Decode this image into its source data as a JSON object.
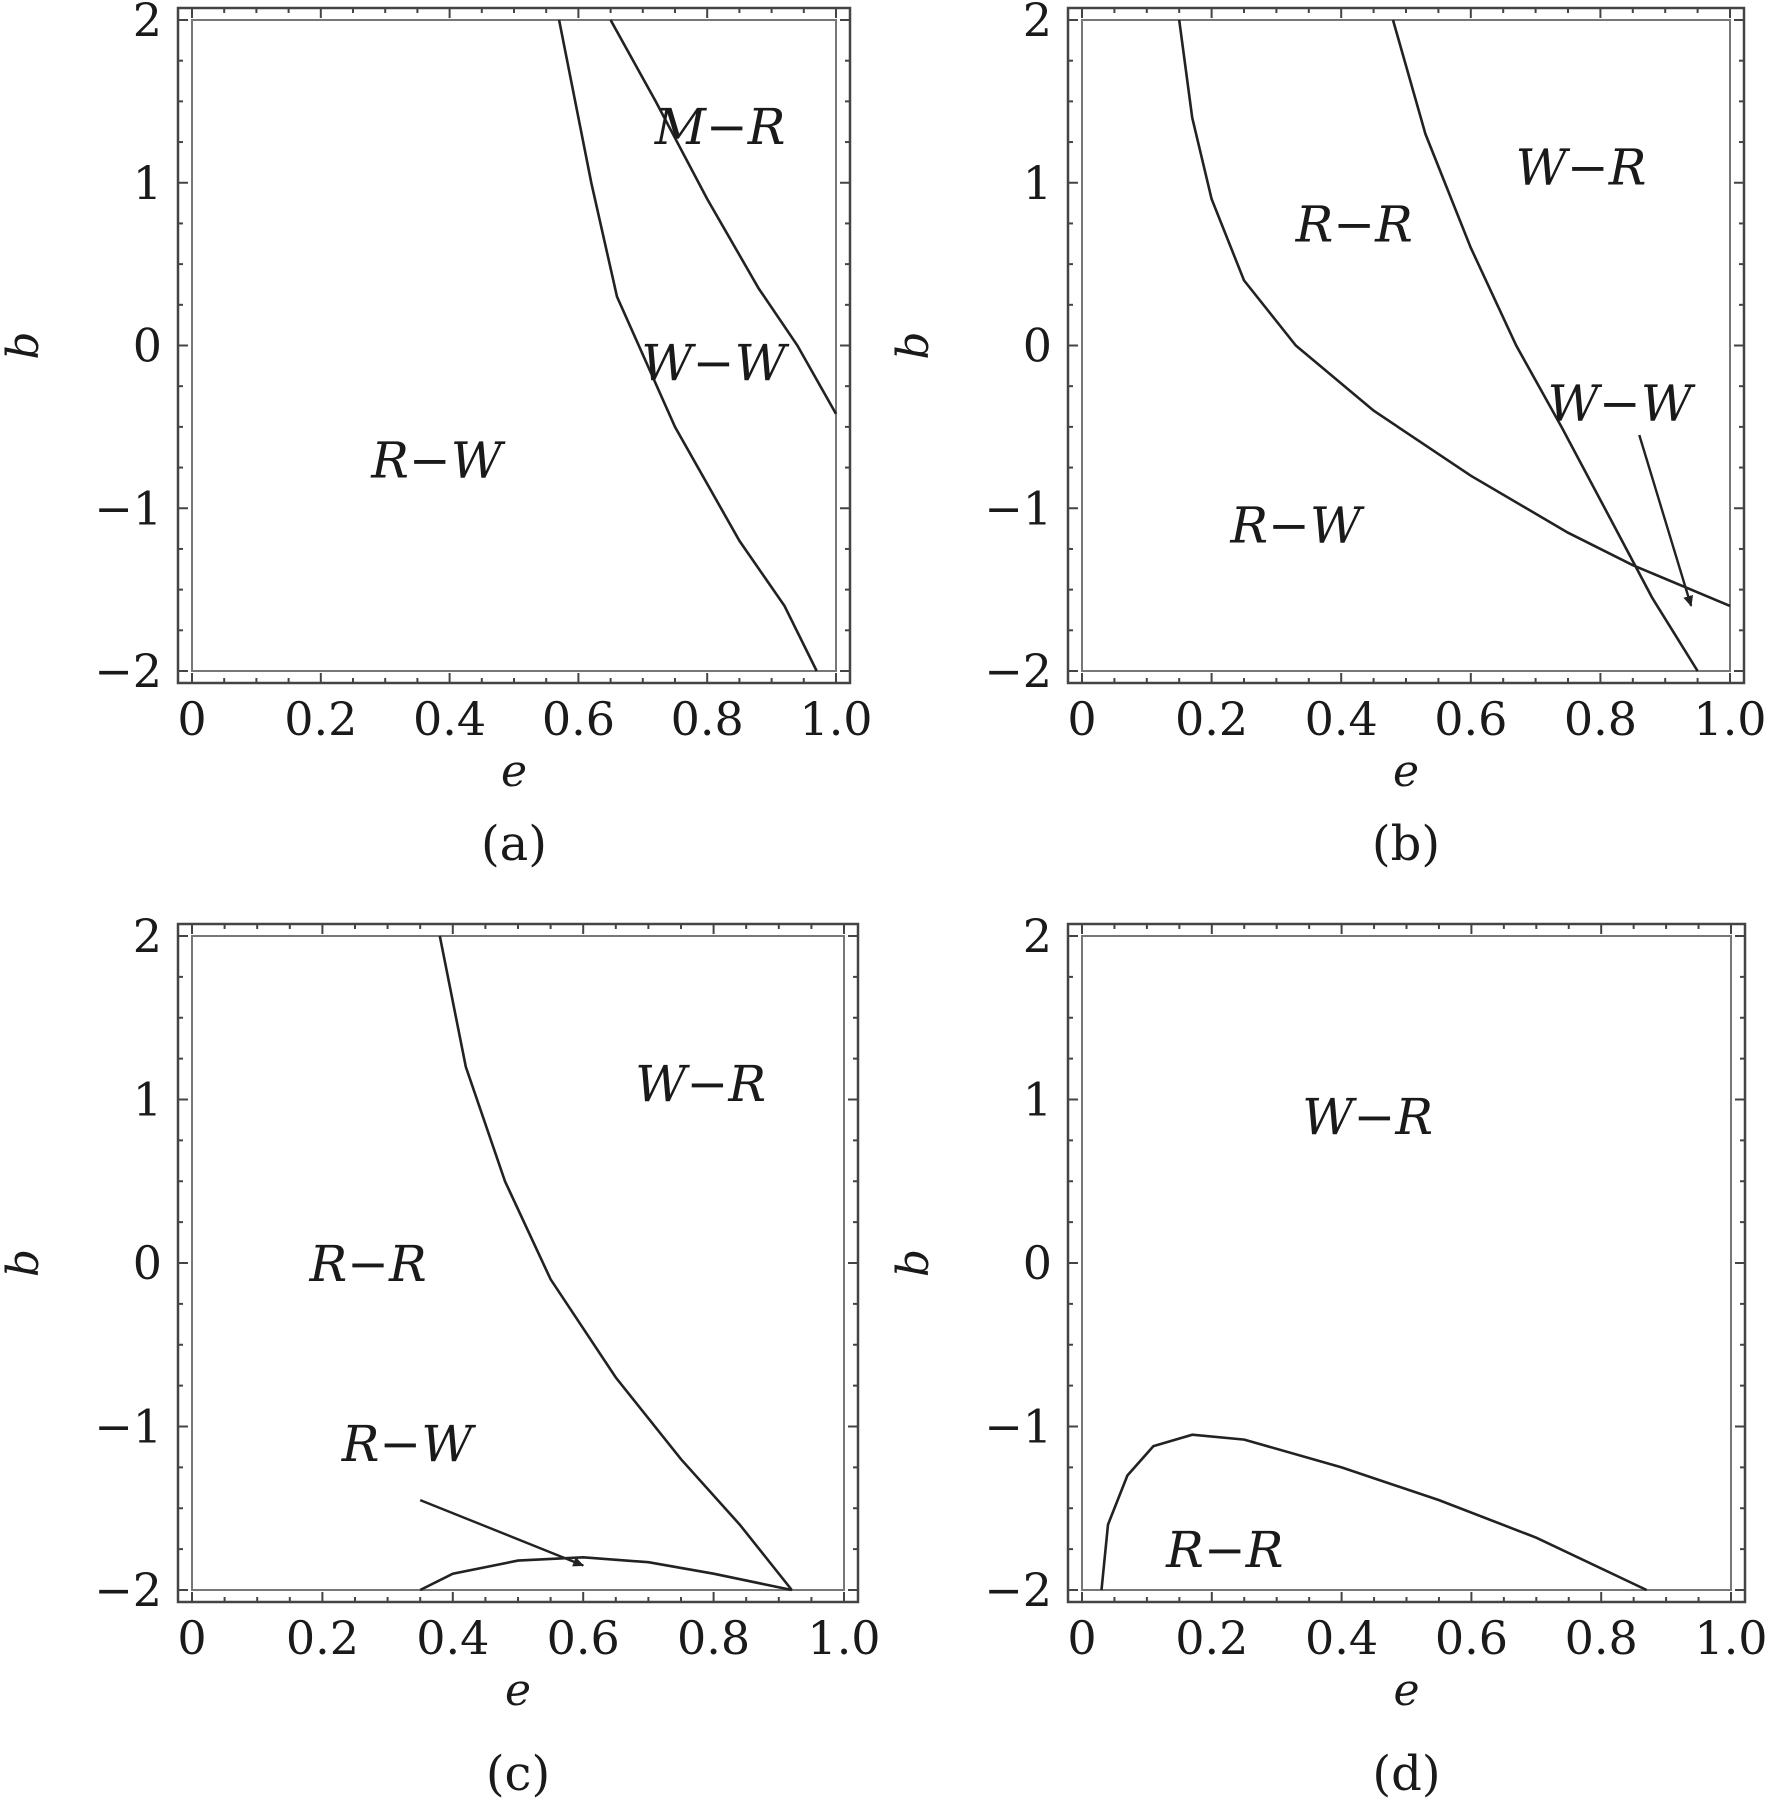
{
  "chart_data": [
    {
      "type": "line",
      "panel": "(a)",
      "xlabel": "e",
      "ylabel": "b",
      "xlim": [
        0,
        1.0
      ],
      "ylim": [
        -2,
        2
      ],
      "x_ticks": [
        "0",
        "0.2",
        "0.4",
        "0.6",
        "0.8",
        "1.0"
      ],
      "y_ticks": [
        "2",
        "1",
        "0",
        "−1",
        "−2"
      ],
      "curves": [
        {
          "points": [
            [
              0.57,
              2
            ],
            [
              0.62,
              1
            ],
            [
              0.66,
              0.3
            ],
            [
              0.75,
              -0.5
            ],
            [
              0.85,
              -1.2
            ],
            [
              0.92,
              -1.6
            ],
            [
              0.97,
              -2
            ]
          ]
        },
        {
          "points": [
            [
              0.65,
              2
            ],
            [
              0.72,
              1.5
            ],
            [
              0.8,
              0.9
            ],
            [
              0.88,
              0.35
            ],
            [
              0.94,
              0.0
            ],
            [
              1.0,
              -0.42
            ]
          ]
        }
      ],
      "regions": [
        {
          "label": "M−R",
          "at": [
            0.82,
            1.35
          ]
        },
        {
          "label": "W−W",
          "at": [
            0.81,
            -0.1
          ]
        },
        {
          "label": "R−W",
          "at": [
            0.38,
            -0.7
          ]
        }
      ],
      "arrows": []
    },
    {
      "type": "line",
      "panel": "(b)",
      "xlabel": "e",
      "ylabel": "b",
      "xlim": [
        0,
        1.0
      ],
      "ylim": [
        -2,
        2
      ],
      "x_ticks": [
        "0",
        "0.2",
        "0.4",
        "0.6",
        "0.8",
        "1.0"
      ],
      "y_ticks": [
        "2",
        "1",
        "0",
        "−1",
        "−2"
      ],
      "curves": [
        {
          "points": [
            [
              0.15,
              2
            ],
            [
              0.17,
              1.4
            ],
            [
              0.2,
              0.9
            ],
            [
              0.25,
              0.4
            ],
            [
              0.33,
              0.0
            ],
            [
              0.45,
              -0.4
            ],
            [
              0.6,
              -0.8
            ],
            [
              0.75,
              -1.15
            ],
            [
              0.85,
              -1.35
            ],
            [
              1.0,
              -1.6
            ]
          ]
        },
        {
          "points": [
            [
              0.48,
              2
            ],
            [
              0.53,
              1.3
            ],
            [
              0.6,
              0.6
            ],
            [
              0.67,
              0.0
            ],
            [
              0.74,
              -0.5
            ],
            [
              0.82,
              -1.1
            ],
            [
              0.88,
              -1.55
            ],
            [
              0.95,
              -2
            ]
          ]
        }
      ],
      "regions": [
        {
          "label": "W−R",
          "at": [
            0.77,
            1.1
          ]
        },
        {
          "label": "R−R",
          "at": [
            0.42,
            0.75
          ]
        },
        {
          "label": "W−W",
          "at": [
            0.83,
            -0.35
          ]
        },
        {
          "label": "R−W",
          "at": [
            0.33,
            -1.1
          ]
        }
      ],
      "arrows": [
        {
          "from": [
            0.86,
            -0.55
          ],
          "to": [
            0.94,
            -1.6
          ]
        }
      ]
    },
    {
      "type": "line",
      "panel": "(c)",
      "xlabel": "e",
      "ylabel": "b",
      "xlim": [
        0,
        1.0
      ],
      "ylim": [
        -2,
        2
      ],
      "x_ticks": [
        "0",
        "0.2",
        "0.4",
        "0.6",
        "0.8",
        "1.0"
      ],
      "y_ticks": [
        "2",
        "1",
        "0",
        "−1",
        "−2"
      ],
      "curves": [
        {
          "points": [
            [
              0.38,
              2
            ],
            [
              0.42,
              1.2
            ],
            [
              0.48,
              0.5
            ],
            [
              0.55,
              -0.1
            ],
            [
              0.65,
              -0.7
            ],
            [
              0.75,
              -1.2
            ],
            [
              0.84,
              -1.6
            ],
            [
              0.92,
              -2
            ]
          ]
        },
        {
          "points": [
            [
              0.35,
              -2
            ],
            [
              0.4,
              -1.9
            ],
            [
              0.5,
              -1.82
            ],
            [
              0.6,
              -1.8
            ],
            [
              0.7,
              -1.83
            ],
            [
              0.8,
              -1.9
            ],
            [
              0.92,
              -2
            ]
          ]
        }
      ],
      "regions": [
        {
          "label": "W−R",
          "at": [
            0.78,
            1.1
          ]
        },
        {
          "label": "R−R",
          "at": [
            0.27,
            0.0
          ]
        },
        {
          "label": "R−W",
          "at": [
            0.33,
            -1.1
          ]
        }
      ],
      "arrows": [
        {
          "from": [
            0.35,
            -1.45
          ],
          "to": [
            0.6,
            -1.85
          ]
        }
      ]
    },
    {
      "type": "line",
      "panel": "(d)",
      "xlabel": "e",
      "ylabel": "b",
      "xlim": [
        0,
        1.0
      ],
      "ylim": [
        -2,
        2
      ],
      "x_ticks": [
        "0",
        "0.2",
        "0.4",
        "0.6",
        "0.8",
        "1.0"
      ],
      "y_ticks": [
        "2",
        "1",
        "0",
        "−1",
        "−2"
      ],
      "curves": [
        {
          "points": [
            [
              0.03,
              -2
            ],
            [
              0.04,
              -1.6
            ],
            [
              0.07,
              -1.3
            ],
            [
              0.11,
              -1.12
            ],
            [
              0.17,
              -1.05
            ],
            [
              0.25,
              -1.08
            ],
            [
              0.4,
              -1.25
            ],
            [
              0.55,
              -1.45
            ],
            [
              0.7,
              -1.68
            ],
            [
              0.87,
              -2
            ]
          ]
        }
      ],
      "regions": [
        {
          "label": "W−R",
          "at": [
            0.44,
            0.9
          ]
        },
        {
          "label": "R−R",
          "at": [
            0.22,
            -1.75
          ]
        }
      ],
      "arrows": []
    }
  ]
}
